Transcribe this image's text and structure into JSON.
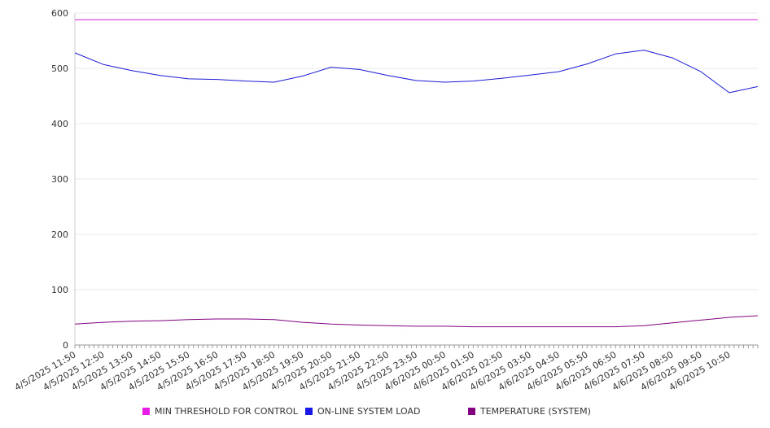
{
  "chart_data": {
    "type": "line",
    "ylim": [
      0,
      600
    ],
    "y_ticks": [
      "0",
      "100",
      "200",
      "300",
      "400",
      "500",
      "600"
    ],
    "x_tick_labels": [
      "4/5/2025 11:50",
      "4/5/2025 12:50",
      "4/5/2025 13:50",
      "4/5/2025 14:50",
      "4/5/2025 15:50",
      "4/5/2025 16:50",
      "4/5/2025 17:50",
      "4/5/2025 18:50",
      "4/5/2025 19:50",
      "4/5/2025 20:50",
      "4/5/2025 21:50",
      "4/5/2025 22:50",
      "4/5/2025 23:50",
      "4/6/2025 00:50",
      "4/6/2025 01:50",
      "4/6/2025 02:50",
      "4/6/2025 03:50",
      "4/6/2025 04:50",
      "4/6/2025 05:50",
      "4/6/2025 06:50",
      "4/6/2025 07:50",
      "4/6/2025 08:50",
      "4/6/2025 09:50",
      "4/6/2025 10:50"
    ],
    "grid": true,
    "legend_position": "bottom",
    "series": [
      {
        "name": "MIN THRESHOLD FOR CONTROL",
        "color": "#d41fd4",
        "x": [
          "4/5/2025 11:50",
          "4/6/2025 11:50"
        ],
        "values": [
          588,
          588
        ]
      },
      {
        "name": "ON-LINE SYSTEM LOAD",
        "color": "#1a1ad6",
        "x": [
          "4/5/2025 11:50",
          "4/5/2025 12:50",
          "4/5/2025 13:50",
          "4/5/2025 14:50",
          "4/5/2025 15:50",
          "4/5/2025 16:50",
          "4/5/2025 17:50",
          "4/5/2025 18:50",
          "4/5/2025 19:50",
          "4/5/2025 20:50",
          "4/5/2025 21:50",
          "4/5/2025 22:50",
          "4/5/2025 23:50",
          "4/6/2025 00:50",
          "4/6/2025 01:50",
          "4/6/2025 02:50",
          "4/6/2025 03:50",
          "4/6/2025 04:50",
          "4/6/2025 05:50",
          "4/6/2025 06:50",
          "4/6/2025 07:50",
          "4/6/2025 08:50",
          "4/6/2025 09:50",
          "4/6/2025 10:50",
          "4/6/2025 11:50"
        ],
        "values": [
          528,
          507,
          496,
          487,
          481,
          480,
          477,
          475,
          486,
          502,
          498,
          487,
          478,
          475,
          477,
          482,
          488,
          494,
          508,
          526,
          533,
          519,
          494,
          456,
          467
        ]
      },
      {
        "name": "TEMPERATURE (SYSTEM)",
        "color": "#800080",
        "x": [
          "4/5/2025 11:50",
          "4/5/2025 12:50",
          "4/5/2025 13:50",
          "4/5/2025 14:50",
          "4/5/2025 15:50",
          "4/5/2025 16:50",
          "4/5/2025 17:50",
          "4/5/2025 18:50",
          "4/5/2025 19:50",
          "4/5/2025 20:50",
          "4/5/2025 21:50",
          "4/5/2025 22:50",
          "4/5/2025 23:50",
          "4/6/2025 00:50",
          "4/6/2025 01:50",
          "4/6/2025 02:50",
          "4/6/2025 03:50",
          "4/6/2025 04:50",
          "4/6/2025 05:50",
          "4/6/2025 06:50",
          "4/6/2025 07:50",
          "4/6/2025 08:50",
          "4/6/2025 09:50",
          "4/6/2025 10:50",
          "4/6/2025 11:50"
        ],
        "values": [
          38,
          41,
          43,
          44,
          46,
          47,
          47,
          46,
          41,
          38,
          36,
          35,
          34,
          34,
          33,
          33,
          33,
          33,
          33,
          33,
          35,
          40,
          45,
          50,
          53
        ]
      }
    ]
  }
}
